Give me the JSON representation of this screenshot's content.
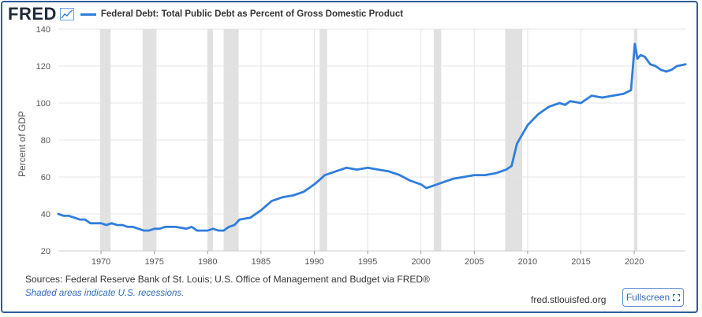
{
  "header": {
    "logo": "FRED",
    "logo_icon": "line-graph-icon",
    "legend_label": "Federal Debt: Total Public Debt as Percent of Gross Domestic Product"
  },
  "footer": {
    "sources": "Sources: Federal Reserve Bank of St. Louis; U.S. Office of Management and Budget via FRED®",
    "note": "Shaded areas indicate U.S. recessions.",
    "site": "fred.stlouisfed.org",
    "fullscreen_label": "Fullscreen",
    "fullscreen_icon": "expand-icon"
  },
  "colors": {
    "line": "#2f7ddc",
    "recession": "#e1e1e1",
    "grid": "#e4e4e4",
    "border": "#2b5d99"
  },
  "chart_data": {
    "type": "line",
    "title": "Federal Debt: Total Public Debt as Percent of Gross Domestic Product",
    "ylabel": "Percent of GDP",
    "xlabel": "",
    "xlim": [
      1966,
      2024.8
    ],
    "ylim": [
      20,
      140
    ],
    "x_ticks": [
      1970,
      1975,
      1980,
      1985,
      1990,
      1995,
      2000,
      2005,
      2010,
      2015,
      2020
    ],
    "y_ticks": [
      20,
      40,
      60,
      80,
      100,
      120,
      140
    ],
    "recessions": [
      [
        1969.9,
        1970.9
      ],
      [
        1973.9,
        1975.2
      ],
      [
        1980.0,
        1980.5
      ],
      [
        1981.5,
        1982.9
      ],
      [
        1990.5,
        1991.2
      ],
      [
        2001.2,
        2001.9
      ],
      [
        2007.9,
        2009.5
      ],
      [
        2020.0,
        2020.3
      ]
    ],
    "series": [
      {
        "name": "Federal Debt: Total Public Debt as Percent of Gross Domestic Product",
        "x": [
          1966,
          1966.5,
          1967,
          1967.5,
          1968,
          1968.5,
          1969,
          1969.5,
          1970,
          1970.5,
          1971,
          1971.5,
          1972,
          1972.5,
          1973,
          1973.5,
          1974,
          1974.5,
          1975,
          1975.5,
          1976,
          1977,
          1978,
          1978.5,
          1979,
          1980,
          1980.5,
          1981,
          1981.5,
          1982,
          1982.5,
          1983,
          1984,
          1985,
          1986,
          1987,
          1988,
          1989,
          1990,
          1991,
          1992,
          1993,
          1994,
          1995,
          1996,
          1997,
          1998,
          1999,
          2000,
          2000.5,
          2001,
          2002,
          2003,
          2004,
          2005,
          2006,
          2007,
          2008,
          2008.5,
          2009,
          2009.5,
          2010,
          2011,
          2012,
          2013,
          2013.5,
          2014,
          2015,
          2016,
          2017,
          2018,
          2019,
          2019.7,
          2020.05,
          2020.3,
          2020.6,
          2021,
          2021.5,
          2022,
          2022.5,
          2023,
          2023.5,
          2024,
          2024.8
        ],
        "values": [
          40,
          39,
          39,
          38,
          37,
          37,
          35,
          35,
          35,
          34,
          35,
          34,
          34,
          33,
          33,
          32,
          31,
          31,
          32,
          32,
          33,
          33,
          32,
          33,
          31,
          31,
          32,
          31,
          31,
          33,
          34,
          37,
          38,
          42,
          47,
          49,
          50,
          52,
          56,
          61,
          63,
          65,
          64,
          65,
          64,
          63,
          61,
          58,
          56,
          54,
          55,
          57,
          59,
          60,
          61,
          61,
          62,
          64,
          66,
          78,
          83,
          88,
          94,
          98,
          100,
          99,
          101,
          100,
          104,
          103,
          104,
          105,
          107,
          132,
          124,
          126,
          125,
          121,
          120,
          118,
          117,
          118,
          120,
          121
        ]
      }
    ]
  }
}
